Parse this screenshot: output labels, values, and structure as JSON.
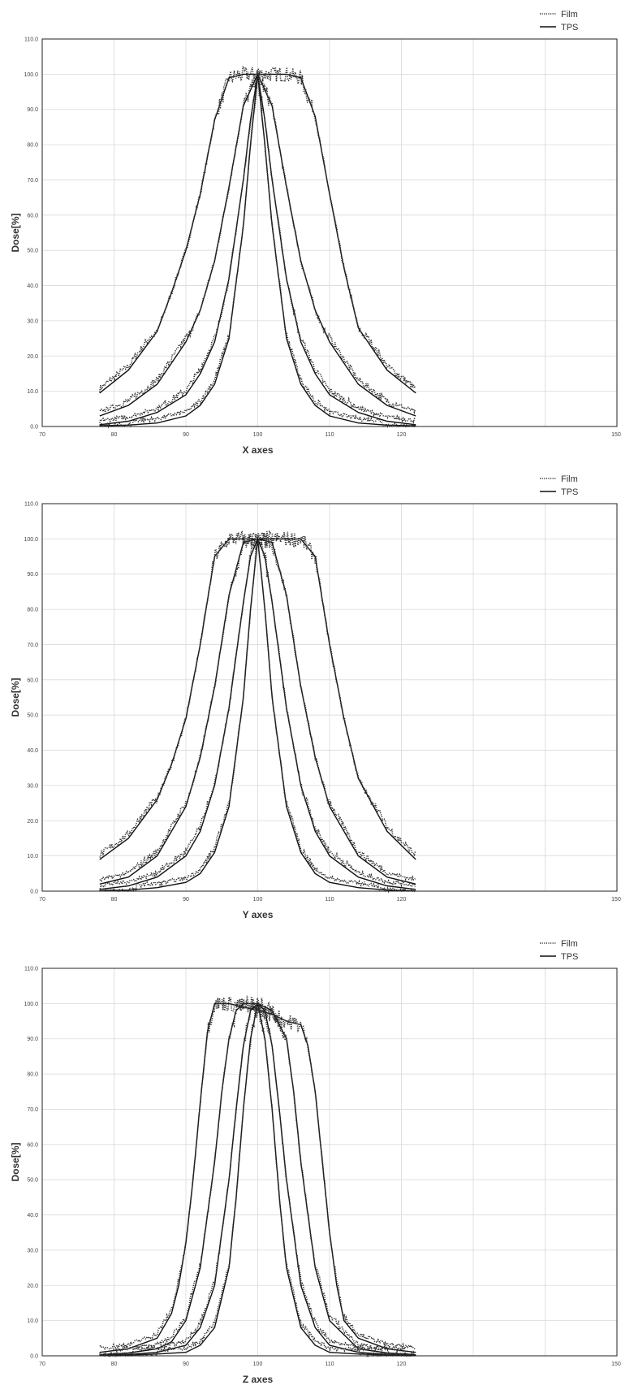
{
  "chart_data": [
    {
      "type": "line",
      "xlabel": "X axes",
      "ylabel": "Dose[%]",
      "xlim": [
        70,
        150
      ],
      "ylim": [
        0,
        110
      ],
      "x_ticks": [
        "70",
        "80",
        "90",
        "100",
        "110",
        "120",
        "150"
      ],
      "y_ticks": [
        "0.0",
        "10.0",
        "20.0",
        "30.0",
        "40.0",
        "50.0",
        "60.0",
        "70.0",
        "80.0",
        "90.0",
        "100.0",
        "110.0"
      ],
      "legend": [
        "Film",
        "TPS"
      ],
      "legend_position": "top-right",
      "grid": true,
      "x_range_data": [
        78,
        122
      ],
      "series": [
        {
          "name": "TPS",
          "curve_shape": [
            {
              "width": 0.59,
              "edge": 0.27
            },
            {
              "width": 0.63,
              "edge": 0.37
            },
            {
              "width": 0.53,
              "edge": 0.42
            },
            {
              "width": 0.48,
              "edge": 0.45
            }
          ]
        },
        {
          "name": "Film",
          "curve_shape": [
            {
              "width": 0.59,
              "edge": 0.27
            },
            {
              "width": 0.63,
              "edge": 0.37
            },
            {
              "width": 0.53,
              "edge": 0.42
            },
            {
              "width": 0.48,
              "edge": 0.45
            }
          ]
        }
      ],
      "curves": [
        {
          "x": [
            78,
            82,
            86,
            88,
            90,
            92,
            94,
            96,
            98,
            100,
            102,
            104,
            106,
            108,
            110,
            112,
            114,
            118,
            122
          ],
          "y": [
            9.5,
            16,
            27,
            38,
            50,
            66,
            87,
            99,
            100,
            100,
            100,
            100,
            99,
            88,
            66,
            45,
            28,
            16,
            9.5
          ]
        },
        {
          "x": [
            78,
            82,
            86,
            90,
            92,
            94,
            96,
            98,
            100,
            102,
            104,
            106,
            108,
            110,
            114,
            118,
            122
          ],
          "y": [
            3,
            6,
            12,
            24,
            33,
            47,
            68,
            91,
            100,
            91,
            68,
            47,
            33,
            24,
            12,
            6,
            3
          ]
        },
        {
          "x": [
            78,
            82,
            86,
            90,
            92,
            94,
            96,
            98,
            99,
            100,
            101,
            102,
            104,
            106,
            108,
            110,
            114,
            118,
            122
          ],
          "y": [
            0.5,
            1.5,
            4,
            9,
            15,
            24,
            42,
            70,
            87,
            100,
            87,
            70,
            42,
            24,
            15,
            9,
            4,
            1.5,
            0.5
          ]
        },
        {
          "x": [
            78,
            82,
            86,
            90,
            92,
            94,
            96,
            98,
            99,
            100,
            101,
            102,
            104,
            106,
            108,
            110,
            114,
            118,
            122
          ],
          "y": [
            0.2,
            0.4,
            1,
            3,
            6,
            12,
            25,
            57,
            80,
            100,
            80,
            57,
            25,
            12,
            6,
            3,
            1,
            0.4,
            0.2
          ]
        }
      ]
    },
    {
      "type": "line",
      "xlabel": "Y axes",
      "ylabel": "Dose[%]",
      "xlim": [
        70,
        150
      ],
      "ylim": [
        0,
        110
      ],
      "x_ticks": [
        "70",
        "80",
        "90",
        "100",
        "110",
        "120",
        "150"
      ],
      "y_ticks": [
        "0.0",
        "10.0",
        "20.0",
        "30.0",
        "40.0",
        "50.0",
        "60.0",
        "70.0",
        "80.0",
        "90.0",
        "100.0",
        "110.0"
      ],
      "legend": [
        "Film",
        "TPS"
      ],
      "legend_position": "top-right",
      "grid": true,
      "curves": [
        {
          "x": [
            78,
            82,
            86,
            88,
            90,
            92,
            94,
            96,
            98,
            100,
            102,
            104,
            106,
            108,
            110,
            112,
            114,
            118,
            122
          ],
          "y": [
            9,
            15,
            26,
            36,
            49,
            70,
            95,
            100,
            100,
            100,
            100,
            100,
            100,
            95,
            70,
            49,
            32,
            17,
            9
          ]
        },
        {
          "x": [
            78,
            82,
            86,
            90,
            92,
            94,
            96,
            98,
            100,
            102,
            104,
            106,
            108,
            110,
            114,
            118,
            122
          ],
          "y": [
            2,
            4,
            10,
            24,
            38,
            58,
            84,
            99,
            100,
            99,
            84,
            58,
            38,
            24,
            10,
            4,
            2
          ]
        },
        {
          "x": [
            78,
            82,
            86,
            90,
            92,
            94,
            96,
            98,
            99,
            100,
            101,
            102,
            104,
            106,
            108,
            110,
            114,
            118,
            122
          ],
          "y": [
            0.5,
            1.5,
            4,
            10,
            17,
            30,
            52,
            82,
            95,
            100,
            95,
            82,
            52,
            30,
            17,
            10,
            4,
            1.5,
            0.5
          ]
        },
        {
          "x": [
            78,
            82,
            86,
            90,
            92,
            94,
            96,
            98,
            99,
            100,
            101,
            102,
            104,
            106,
            108,
            110,
            114,
            118,
            122
          ],
          "y": [
            0.1,
            0.3,
            1,
            2.5,
            5,
            11,
            24,
            55,
            80,
            100,
            80,
            55,
            24,
            11,
            5,
            2.5,
            1,
            0.3,
            0.1
          ]
        }
      ]
    },
    {
      "type": "line",
      "xlabel": "Z axes",
      "ylabel": "Dose[%]",
      "xlim": [
        70,
        150
      ],
      "ylim": [
        0,
        110
      ],
      "x_ticks": [
        "70",
        "80",
        "90",
        "100",
        "110",
        "120",
        "150"
      ],
      "y_ticks": [
        "0.0",
        "10.0",
        "20.0",
        "30.0",
        "40.0",
        "50.0",
        "60.0",
        "70.0",
        "80.0",
        "90.0",
        "100.0",
        "110.0"
      ],
      "legend": [
        "Film",
        "TPS"
      ],
      "legend_position": "top-right",
      "grid": true,
      "curves": [
        {
          "x": [
            78,
            82,
            86,
            88,
            89,
            90,
            91,
            92,
            93,
            94,
            96,
            98,
            100,
            102,
            104,
            106,
            107,
            108,
            109,
            110,
            111,
            112,
            114,
            118,
            122
          ],
          "y": [
            1,
            2,
            5,
            12,
            20,
            32,
            50,
            72,
            92,
            100,
            100,
            99,
            98,
            97,
            95,
            94,
            88,
            75,
            55,
            35,
            20,
            10,
            5,
            2,
            1
          ]
        },
        {
          "x": [
            78,
            82,
            86,
            88,
            90,
            92,
            94,
            95,
            96,
            97,
            98,
            100,
            102,
            104,
            105,
            106,
            107,
            108,
            110,
            114,
            118,
            122
          ],
          "y": [
            0.3,
            0.8,
            2,
            4,
            10,
            25,
            55,
            75,
            90,
            98,
            100,
            100,
            98,
            90,
            75,
            55,
            40,
            25,
            10,
            2,
            0.8,
            0.3
          ]
        },
        {
          "x": [
            78,
            82,
            86,
            90,
            92,
            94,
            96,
            97,
            98,
            99,
            100,
            101,
            102,
            103,
            104,
            106,
            108,
            110,
            114,
            118,
            122
          ],
          "y": [
            0.2,
            0.4,
            1,
            3,
            8,
            20,
            50,
            70,
            88,
            98,
            100,
            98,
            88,
            70,
            50,
            20,
            8,
            3,
            1,
            0.4,
            0.2
          ]
        },
        {
          "x": [
            78,
            82,
            86,
            90,
            92,
            94,
            96,
            97,
            98,
            99,
            100,
            101,
            102,
            103,
            104,
            106,
            108,
            110,
            114,
            118,
            122
          ],
          "y": [
            0.1,
            0.2,
            0.5,
            1,
            3,
            8,
            25,
            45,
            70,
            90,
            100,
            90,
            70,
            45,
            25,
            8,
            3,
            1,
            0.5,
            0.2,
            0.1
          ]
        }
      ]
    }
  ]
}
